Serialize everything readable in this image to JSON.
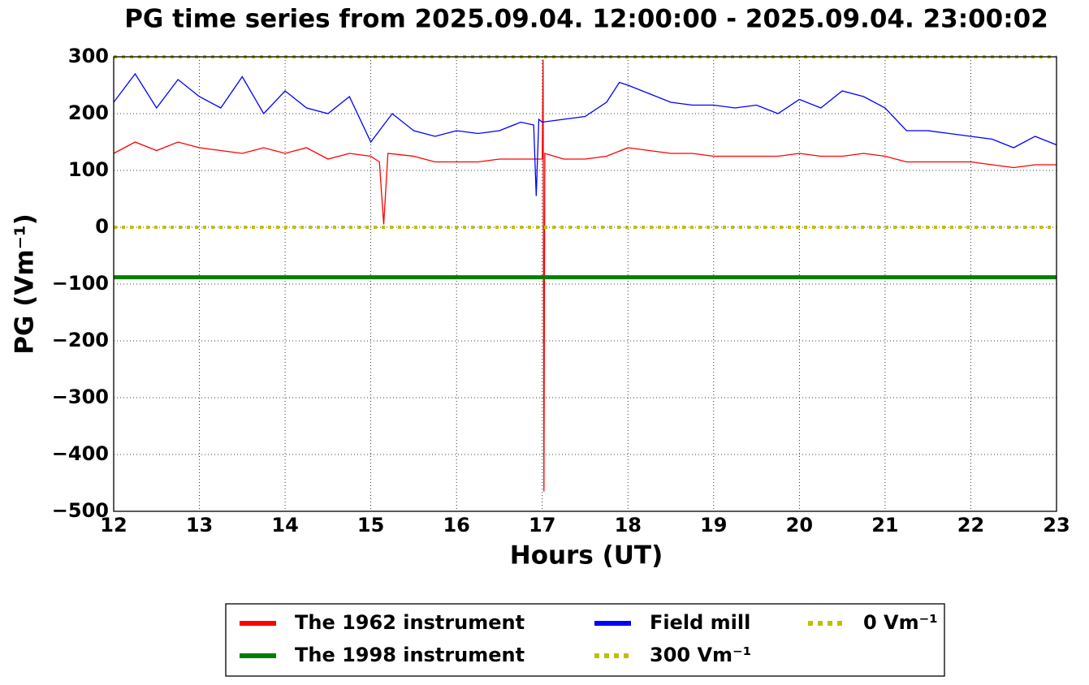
{
  "chart_data": {
    "type": "line",
    "title": "PG time series from 2025.09.04. 12:00:00 - 2025.09.04. 23:00:02",
    "x_label": "Hours (UT)",
    "y_label": "PG (Vm⁻¹)",
    "xlim": [
      12,
      23
    ],
    "ylim": [
      -500,
      300
    ],
    "xticks": [
      12,
      13,
      14,
      15,
      16,
      17,
      18,
      19,
      20,
      21,
      22,
      23
    ],
    "yticks": [
      {
        "value": -500,
        "label": "−500"
      },
      {
        "value": -400,
        "label": "−400"
      },
      {
        "value": -300,
        "label": "−300"
      },
      {
        "value": -200,
        "label": "−200"
      },
      {
        "value": -100,
        "label": "−100"
      },
      0,
      100,
      200,
      300
    ],
    "grid": true,
    "legend": "bottom",
    "series": [
      {
        "name": "The 1962 instrument",
        "color": "#ff0000",
        "x": [
          12,
          12.25,
          12.5,
          12.75,
          13,
          13.25,
          13.5,
          13.75,
          14,
          14.25,
          14.5,
          14.75,
          15,
          15.1,
          15.15,
          15.2,
          15.5,
          15.75,
          16,
          16.25,
          16.5,
          16.75,
          17,
          17.01,
          17.02,
          17.03,
          17.25,
          17.5,
          17.75,
          18,
          18.25,
          18.5,
          18.75,
          19,
          19.25,
          19.5,
          19.75,
          20,
          20.25,
          20.5,
          20.75,
          21,
          21.25,
          21.5,
          21.75,
          22,
          22.25,
          22.5,
          22.75,
          23
        ],
        "values": [
          130,
          150,
          135,
          150,
          140,
          135,
          130,
          140,
          130,
          140,
          120,
          130,
          125,
          115,
          5,
          130,
          125,
          115,
          115,
          115,
          120,
          120,
          120,
          295,
          -465,
          130,
          120,
          120,
          125,
          140,
          135,
          130,
          130,
          125,
          125,
          125,
          125,
          130,
          125,
          125,
          130,
          125,
          115,
          115,
          115,
          115,
          110,
          105,
          110,
          110
        ]
      },
      {
        "name": "The 1998 instrument",
        "color": "#008000",
        "style": "solid-thick",
        "x": [
          12,
          23
        ],
        "values": [
          -88,
          -88
        ]
      },
      {
        "name": "Field mill",
        "color": "#0000ff",
        "x": [
          12,
          12.25,
          12.5,
          12.75,
          13,
          13.25,
          13.5,
          13.75,
          14,
          14.25,
          14.5,
          14.75,
          15,
          15.25,
          15.5,
          15.75,
          16,
          16.25,
          16.5,
          16.75,
          16.9,
          16.93,
          16.96,
          17,
          17.25,
          17.5,
          17.75,
          17.9,
          18,
          18.25,
          18.5,
          18.75,
          19,
          19.25,
          19.5,
          19.75,
          20,
          20.25,
          20.5,
          20.75,
          21,
          21.25,
          21.5,
          21.75,
          22,
          22.25,
          22.5,
          22.75,
          23
        ],
        "values": [
          220,
          270,
          210,
          260,
          230,
          210,
          265,
          200,
          240,
          210,
          200,
          230,
          150,
          200,
          170,
          160,
          170,
          165,
          170,
          185,
          180,
          55,
          190,
          185,
          190,
          195,
          220,
          255,
          250,
          235,
          220,
          215,
          215,
          210,
          215,
          200,
          225,
          210,
          240,
          230,
          210,
          170,
          170,
          165,
          160,
          155,
          140,
          160,
          145
        ]
      },
      {
        "name": "300 Vm⁻¹",
        "color": "#bfbf00",
        "style": "dotted",
        "x": [
          12,
          23
        ],
        "values": [
          300,
          300
        ]
      },
      {
        "name": "0 Vm⁻¹",
        "color": "#bfbf00",
        "style": "dotted",
        "x": [
          12,
          23
        ],
        "values": [
          0,
          0
        ]
      }
    ]
  }
}
